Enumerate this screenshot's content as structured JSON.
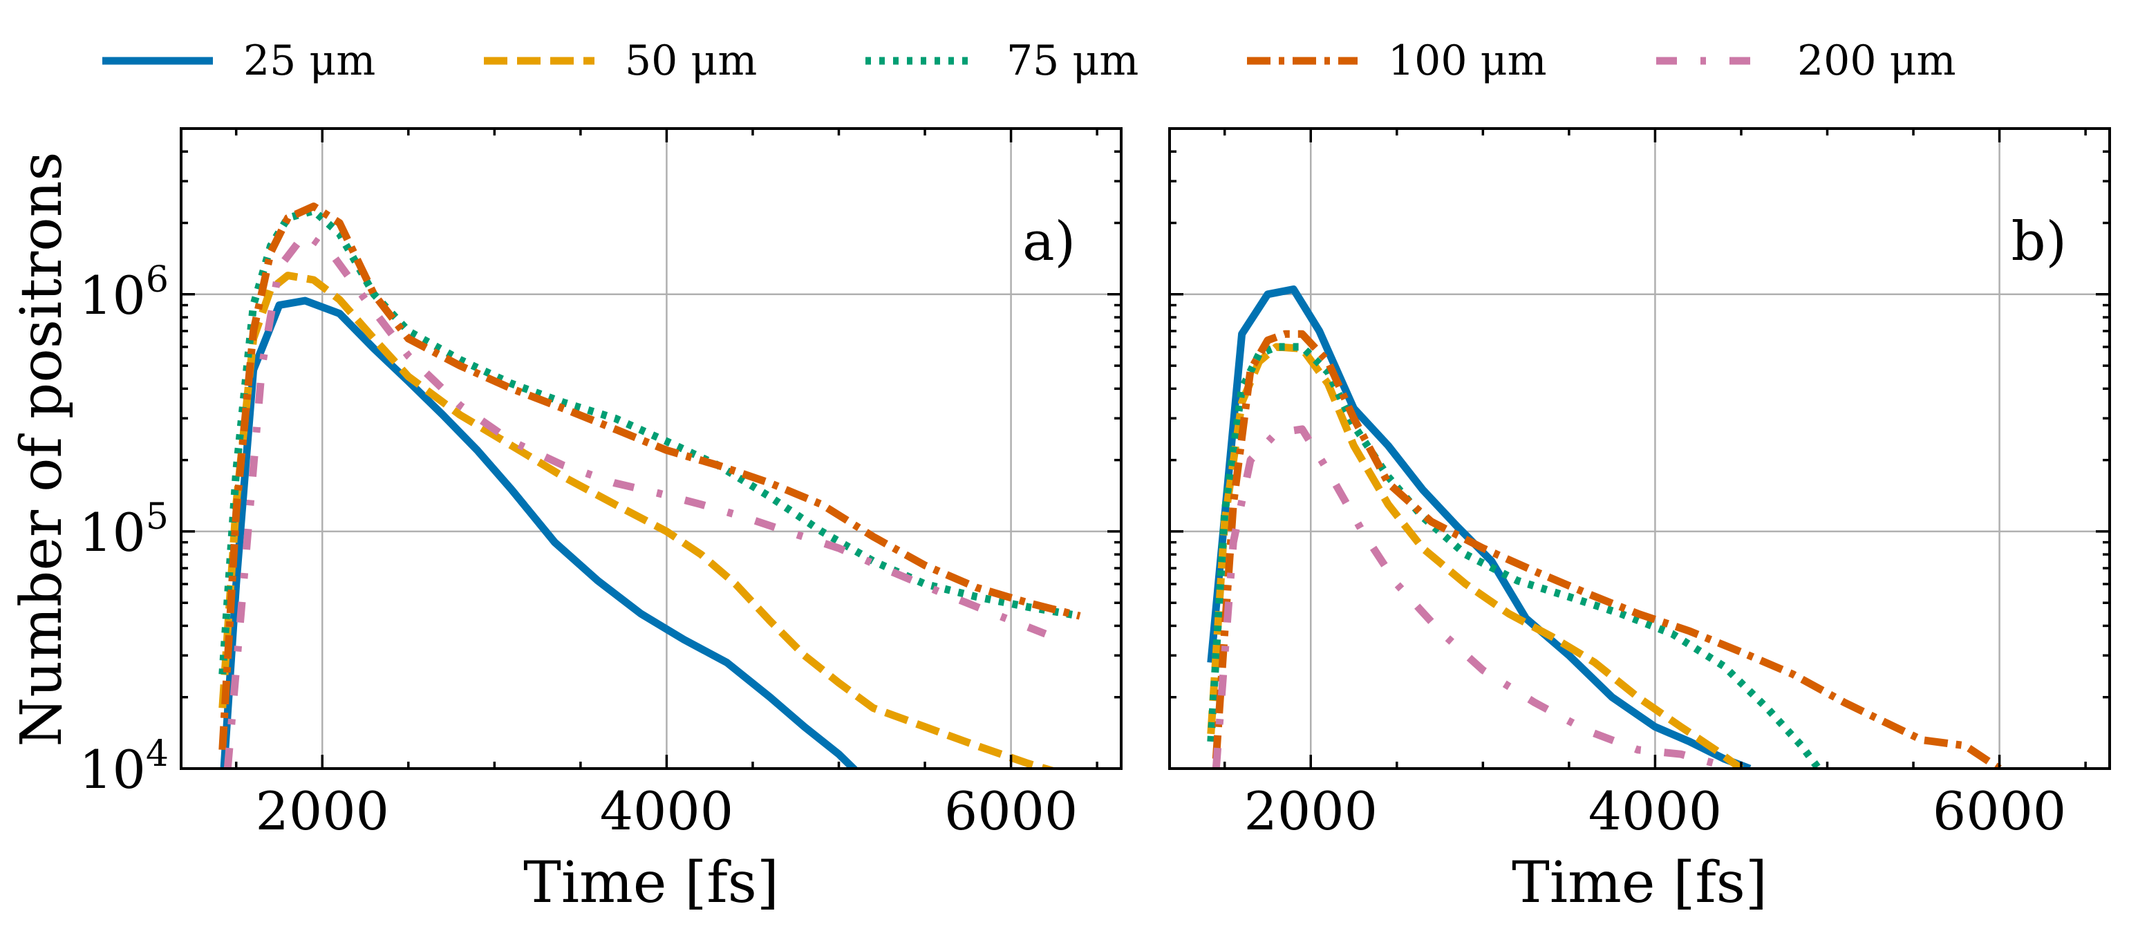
{
  "chart_data": [
    {
      "type": "line",
      "panel_label": "a)",
      "xlabel": "Time [fs]",
      "ylabel": "Number of positrons",
      "yscale": "log",
      "xlim": [
        1180,
        6640
      ],
      "ylim": [
        10000,
        5000000
      ],
      "xticks": [
        2000,
        4000,
        6000
      ],
      "xtick_labels": [
        "2000",
        "4000",
        "6000"
      ],
      "yticks": [
        10000,
        100000,
        1000000
      ],
      "ytick_labels": [
        {
          "base": "10",
          "exp": "4"
        },
        {
          "base": "10",
          "exp": "5"
        },
        {
          "base": "10",
          "exp": "6"
        }
      ],
      "grid": true,
      "series": [
        {
          "name": "25 μm",
          "color": "#0072B2",
          "style": "solid",
          "x": [
            1420,
            1500,
            1600,
            1750,
            1900,
            2100,
            2300,
            2500,
            2700,
            2900,
            3100,
            3350,
            3600,
            3850,
            4100,
            4350,
            4600,
            4800,
            5000,
            5150
          ],
          "y": [
            8000,
            60000,
            480000,
            900000,
            940000,
            830000,
            590000,
            430000,
            310000,
            220000,
            150000,
            90000,
            62000,
            45000,
            35000,
            28000,
            20000,
            15000,
            11500,
            9000
          ]
        },
        {
          "name": "50 μm",
          "color": "#E69F00",
          "style": "dashed",
          "x": [
            1420,
            1500,
            1600,
            1700,
            1800,
            1950,
            2100,
            2300,
            2500,
            2800,
            3100,
            3400,
            3700,
            4000,
            4200,
            4400,
            4600,
            4800,
            5000,
            5200,
            5500,
            5800,
            6100,
            6300
          ],
          "y": [
            18000,
            130000,
            650000,
            1050000,
            1200000,
            1150000,
            950000,
            650000,
            450000,
            310000,
            230000,
            170000,
            130000,
            100000,
            80000,
            60000,
            42000,
            30000,
            23000,
            18000,
            15000,
            12500,
            10500,
            9500
          ]
        },
        {
          "name": "75 μm",
          "color": "#009E73",
          "style": "dotted",
          "x": [
            1420,
            1500,
            1600,
            1700,
            1800,
            1950,
            2100,
            2300,
            2500,
            2800,
            3100,
            3400,
            3700,
            4000,
            4300,
            4600,
            4900,
            5200,
            5500,
            5800,
            6100,
            6400
          ],
          "y": [
            25000,
            180000,
            900000,
            1600000,
            2100000,
            2250000,
            1800000,
            1000000,
            700000,
            530000,
            420000,
            350000,
            300000,
            240000,
            190000,
            140000,
            100000,
            75000,
            60000,
            53000,
            48000,
            44000
          ]
        },
        {
          "name": "100 μm",
          "color": "#D55E00",
          "style": "dashdot",
          "x": [
            1420,
            1500,
            1600,
            1700,
            1800,
            1950,
            2100,
            2300,
            2500,
            2800,
            3100,
            3400,
            3700,
            4000,
            4300,
            4600,
            4900,
            5200,
            5500,
            5800,
            6100,
            6400
          ],
          "y": [
            12000,
            120000,
            700000,
            1500000,
            2100000,
            2350000,
            2000000,
            1000000,
            650000,
            500000,
            400000,
            330000,
            270000,
            220000,
            190000,
            160000,
            130000,
            95000,
            72000,
            58000,
            50000,
            44000
          ]
        },
        {
          "name": "200 μm",
          "color": "#CC79A7",
          "style": "loose-dashdot",
          "x": [
            1450,
            1550,
            1650,
            1750,
            1900,
            2050,
            2250,
            2500,
            2800,
            3100,
            3400,
            3700,
            3950,
            4200,
            4450,
            4700,
            5000,
            5300,
            5600,
            5900,
            6200
          ],
          "y": [
            10000,
            70000,
            500000,
            1300000,
            1800000,
            1500000,
            950000,
            550000,
            340000,
            240000,
            190000,
            160000,
            145000,
            130000,
            115000,
            100000,
            85000,
            68000,
            55000,
            45000,
            37000
          ]
        }
      ]
    },
    {
      "type": "line",
      "panel_label": "b)",
      "xlabel": "Time [fs]",
      "ylabel": "",
      "yscale": "log",
      "xlim": [
        1180,
        6640
      ],
      "ylim": [
        10000,
        5000000
      ],
      "xticks": [
        2000,
        4000,
        6000
      ],
      "xtick_labels": [
        "2000",
        "4000",
        "6000"
      ],
      "yticks": [
        10000,
        100000,
        1000000
      ],
      "grid": true,
      "series": [
        {
          "name": "25 μm",
          "color": "#0072B2",
          "style": "solid",
          "x": [
            1420,
            1600,
            1750,
            1900,
            2050,
            2250,
            2450,
            2650,
            2850,
            3050,
            3250,
            3500,
            3750,
            4000,
            4200,
            4400,
            4550
          ],
          "y": [
            28000,
            680000,
            1000000,
            1050000,
            700000,
            330000,
            230000,
            150000,
            105000,
            75000,
            43000,
            30000,
            20000,
            15000,
            13000,
            11000,
            10000
          ]
        },
        {
          "name": "50 μm",
          "color": "#E69F00",
          "style": "dashed",
          "x": [
            1420,
            1500,
            1600,
            1700,
            1800,
            1950,
            2100,
            2250,
            2450,
            2650,
            2900,
            3150,
            3400,
            3650,
            3900,
            4150,
            4350,
            4500
          ],
          "y": [
            14000,
            110000,
            350000,
            520000,
            600000,
            590000,
            420000,
            230000,
            130000,
            85000,
            60000,
            45000,
            36000,
            28000,
            20000,
            15000,
            12000,
            10000
          ]
        },
        {
          "name": "75 μm",
          "color": "#009E73",
          "style": "dotted",
          "x": [
            1420,
            1500,
            1600,
            1700,
            1800,
            1950,
            2100,
            2250,
            2450,
            2650,
            2900,
            3200,
            3500,
            3800,
            4100,
            4400,
            4650,
            4850,
            4950
          ],
          "y": [
            13000,
            120000,
            400000,
            560000,
            600000,
            600000,
            470000,
            280000,
            170000,
            115000,
            80000,
            62000,
            53000,
            45000,
            37000,
            27000,
            18000,
            12500,
            10000
          ]
        },
        {
          "name": "100 μm",
          "color": "#D55E00",
          "style": "dashdot",
          "x": [
            1450,
            1550,
            1650,
            1750,
            1850,
            1950,
            2100,
            2250,
            2450,
            2700,
            3000,
            3300,
            3600,
            3900,
            4200,
            4500,
            4800,
            5100,
            5350,
            5550,
            5800,
            6000
          ],
          "y": [
            11000,
            130000,
            480000,
            640000,
            680000,
            680000,
            520000,
            300000,
            160000,
            110000,
            85000,
            68000,
            55000,
            45000,
            38000,
            31000,
            25000,
            19000,
            15500,
            13200,
            12500,
            10000
          ]
        },
        {
          "name": "200 μm",
          "color": "#CC79A7",
          "style": "loose-dashdot",
          "x": [
            1450,
            1550,
            1650,
            1800,
            1950,
            2100,
            2300,
            2500,
            2750,
            3000,
            3300,
            3600,
            3900,
            4150,
            4350
          ],
          "y": [
            10000,
            90000,
            200000,
            260000,
            270000,
            180000,
            100000,
            60000,
            38000,
            26000,
            19000,
            14500,
            12000,
            11500,
            10500
          ]
        }
      ]
    }
  ]
}
